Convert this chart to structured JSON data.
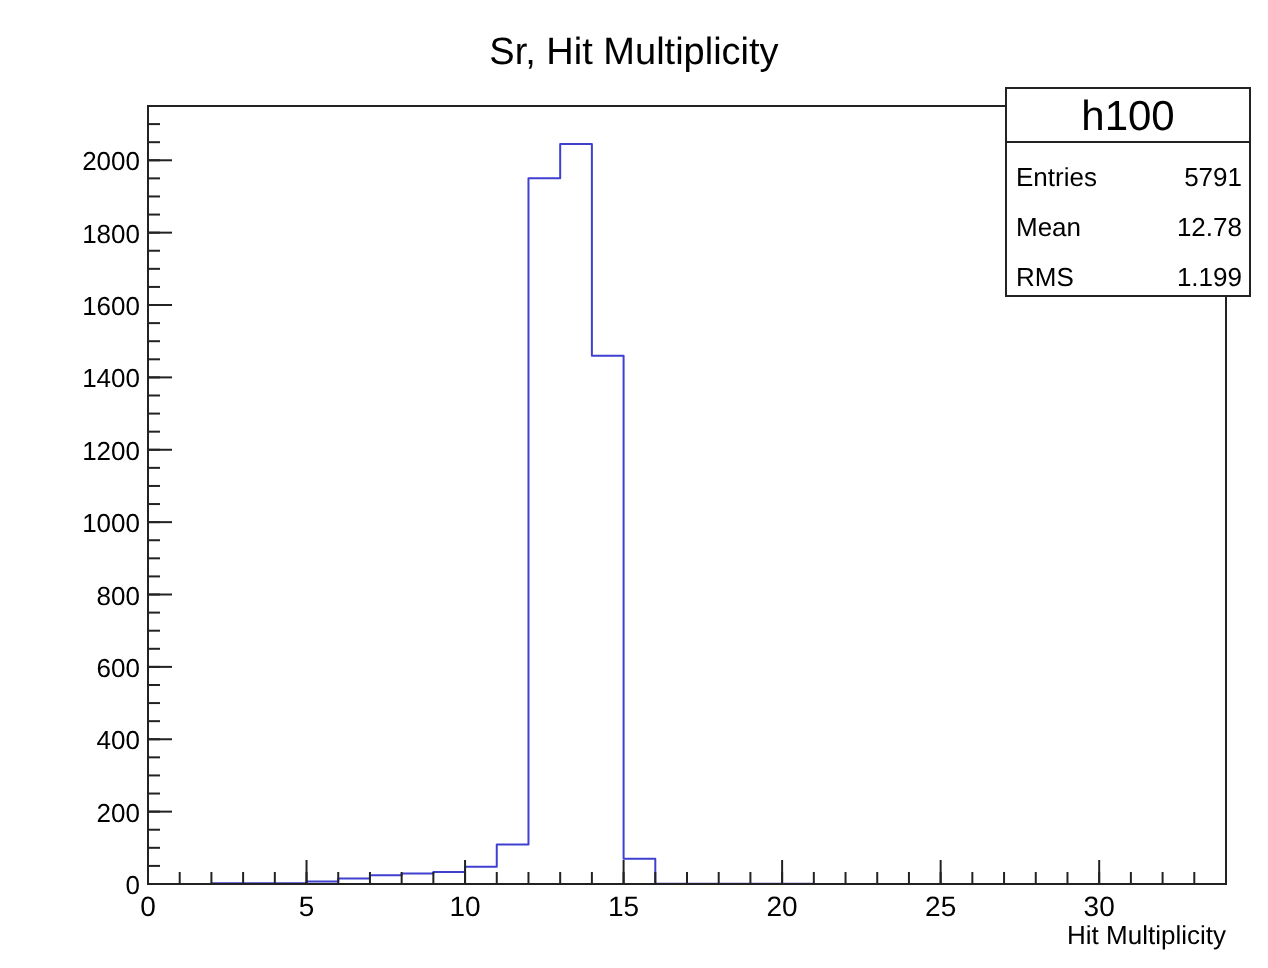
{
  "chart_data": {
    "type": "histogram",
    "title": "Sr, Hit Multiplicity",
    "xlabel": "Hit Multiplicity",
    "bins": [
      0,
      1,
      2,
      3,
      4,
      5,
      6,
      7,
      8,
      9,
      10,
      11,
      12,
      13,
      14,
      15,
      16,
      17,
      18,
      19,
      20,
      21,
      22,
      23,
      24,
      25,
      26,
      27,
      28,
      29,
      30,
      31,
      32,
      33,
      34
    ],
    "values": [
      0,
      0,
      2,
      2,
      2,
      7,
      15,
      24,
      29,
      33,
      48,
      109,
      1950,
      2045,
      1460,
      70,
      1,
      1,
      1,
      1,
      1,
      0,
      0,
      0,
      0,
      0,
      0,
      0,
      0,
      0,
      0,
      0,
      0,
      0
    ],
    "color": "#4040d0",
    "xlim": [
      0,
      34
    ],
    "xticks": [
      0,
      5,
      10,
      15,
      20,
      25,
      30
    ],
    "ylim": [
      0,
      2150
    ],
    "yticks": [
      0,
      200,
      400,
      600,
      800,
      1000,
      1200,
      1400,
      1600,
      1800,
      2000
    ],
    "grid": false,
    "annotations": [
      "h100",
      "Entries",
      "5791",
      "Mean",
      "12.78",
      "RMS",
      "1.199"
    ]
  }
}
